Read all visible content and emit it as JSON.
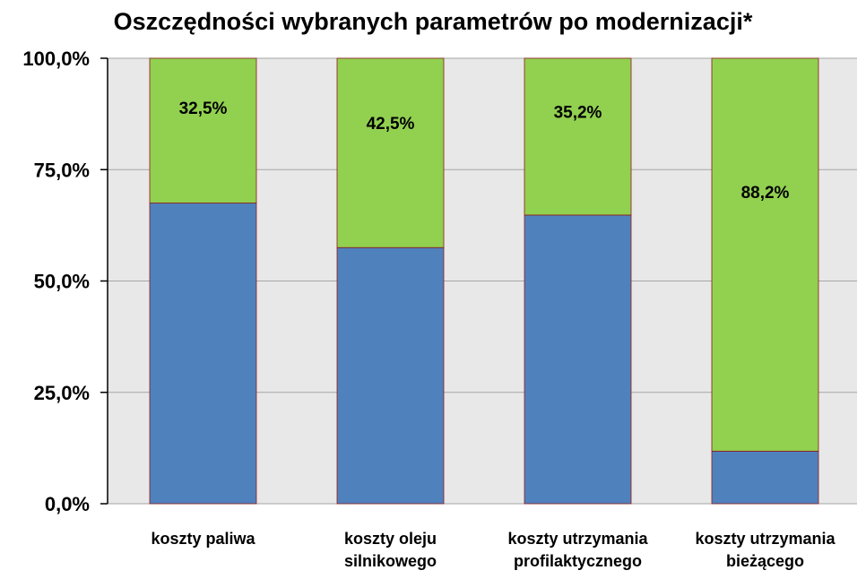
{
  "chart_data": {
    "type": "bar",
    "stacked": true,
    "title": "Oszczędności wybranych parametrów po modernizacji*",
    "categories": [
      [
        "koszty paliwa"
      ],
      [
        "koszty oleju",
        "silnikowego"
      ],
      [
        "koszty utrzymania",
        "profilaktycznego"
      ],
      [
        "koszty utrzymania",
        "bieżącego"
      ]
    ],
    "series": [
      {
        "values": [
          67.5,
          57.5,
          64.8,
          11.8
        ],
        "color": "#4f81bd"
      },
      {
        "values": [
          32.5,
          42.5,
          35.2,
          88.2
        ],
        "color": "#92d050",
        "labels": [
          "32,5%",
          "42,5%",
          "35,2%",
          "88,2%"
        ]
      }
    ],
    "ylim": [
      0,
      100
    ],
    "yticks": [
      "0,0%",
      "25,0%",
      "50,0%",
      "75,0%",
      "100,0%"
    ],
    "ytick_values": [
      0,
      25,
      50,
      75,
      100
    ],
    "grid": true,
    "plot_background": "#e8e8e8",
    "bar_outline_color": "#8b1a1a"
  }
}
